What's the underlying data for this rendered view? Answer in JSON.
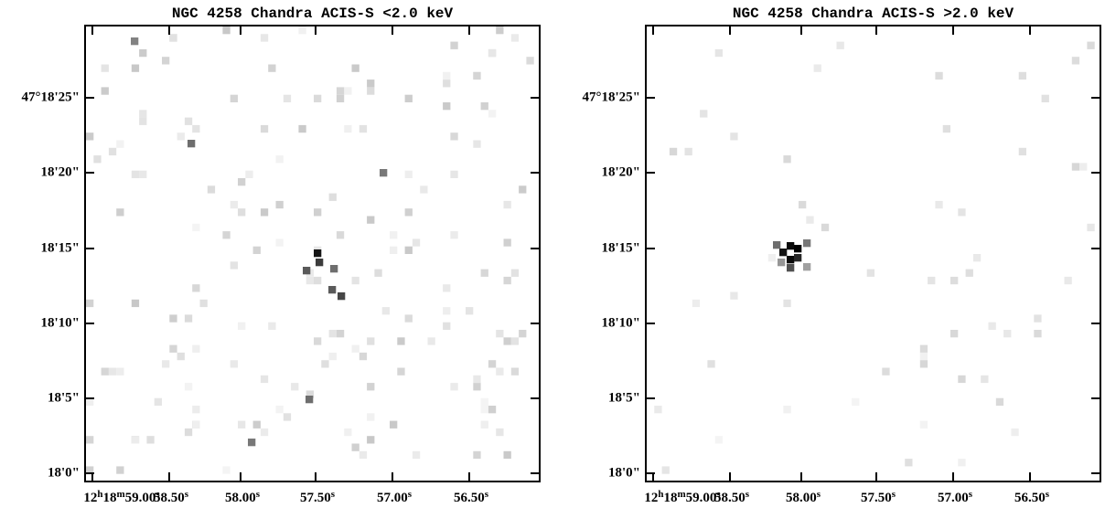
{
  "panels": [
    {
      "title": "NGC 4258 Chandra ACIS-S <2.0 keV",
      "y_ticks": [
        "47°18'25\"",
        "18'20\"",
        "18'15\"",
        "18'10\"",
        "18'5\"",
        "18'0\""
      ],
      "x_ticks": [
        {
          "parts": [
            "12",
            "h",
            "18",
            "m",
            "59.00",
            "s"
          ]
        },
        {
          "parts": [
            "58.50",
            "s"
          ]
        },
        {
          "parts": [
            "58.00",
            "s"
          ]
        },
        {
          "parts": [
            "57.50",
            "s"
          ]
        },
        {
          "parts": [
            "57.00",
            "s"
          ]
        },
        {
          "parts": [
            "56.50",
            "s"
          ]
        }
      ]
    },
    {
      "title": "NGC 4258 Chandra ACIS-S >2.0 keV",
      "y_ticks": [
        "47°18'25\"",
        "18'20\"",
        "18'15\"",
        "18'10\"",
        "18'5\"",
        "18'0\""
      ],
      "x_ticks": [
        {
          "parts": [
            "12",
            "h",
            "18",
            "m",
            "59.00",
            "s"
          ]
        },
        {
          "parts": [
            "58.50",
            "s"
          ]
        },
        {
          "parts": [
            "58.00",
            "s"
          ]
        },
        {
          "parts": [
            "57.50",
            "s"
          ]
        },
        {
          "parts": [
            "57.00",
            "s"
          ]
        },
        {
          "parts": [
            "56.50",
            "s"
          ]
        }
      ]
    }
  ]
}
